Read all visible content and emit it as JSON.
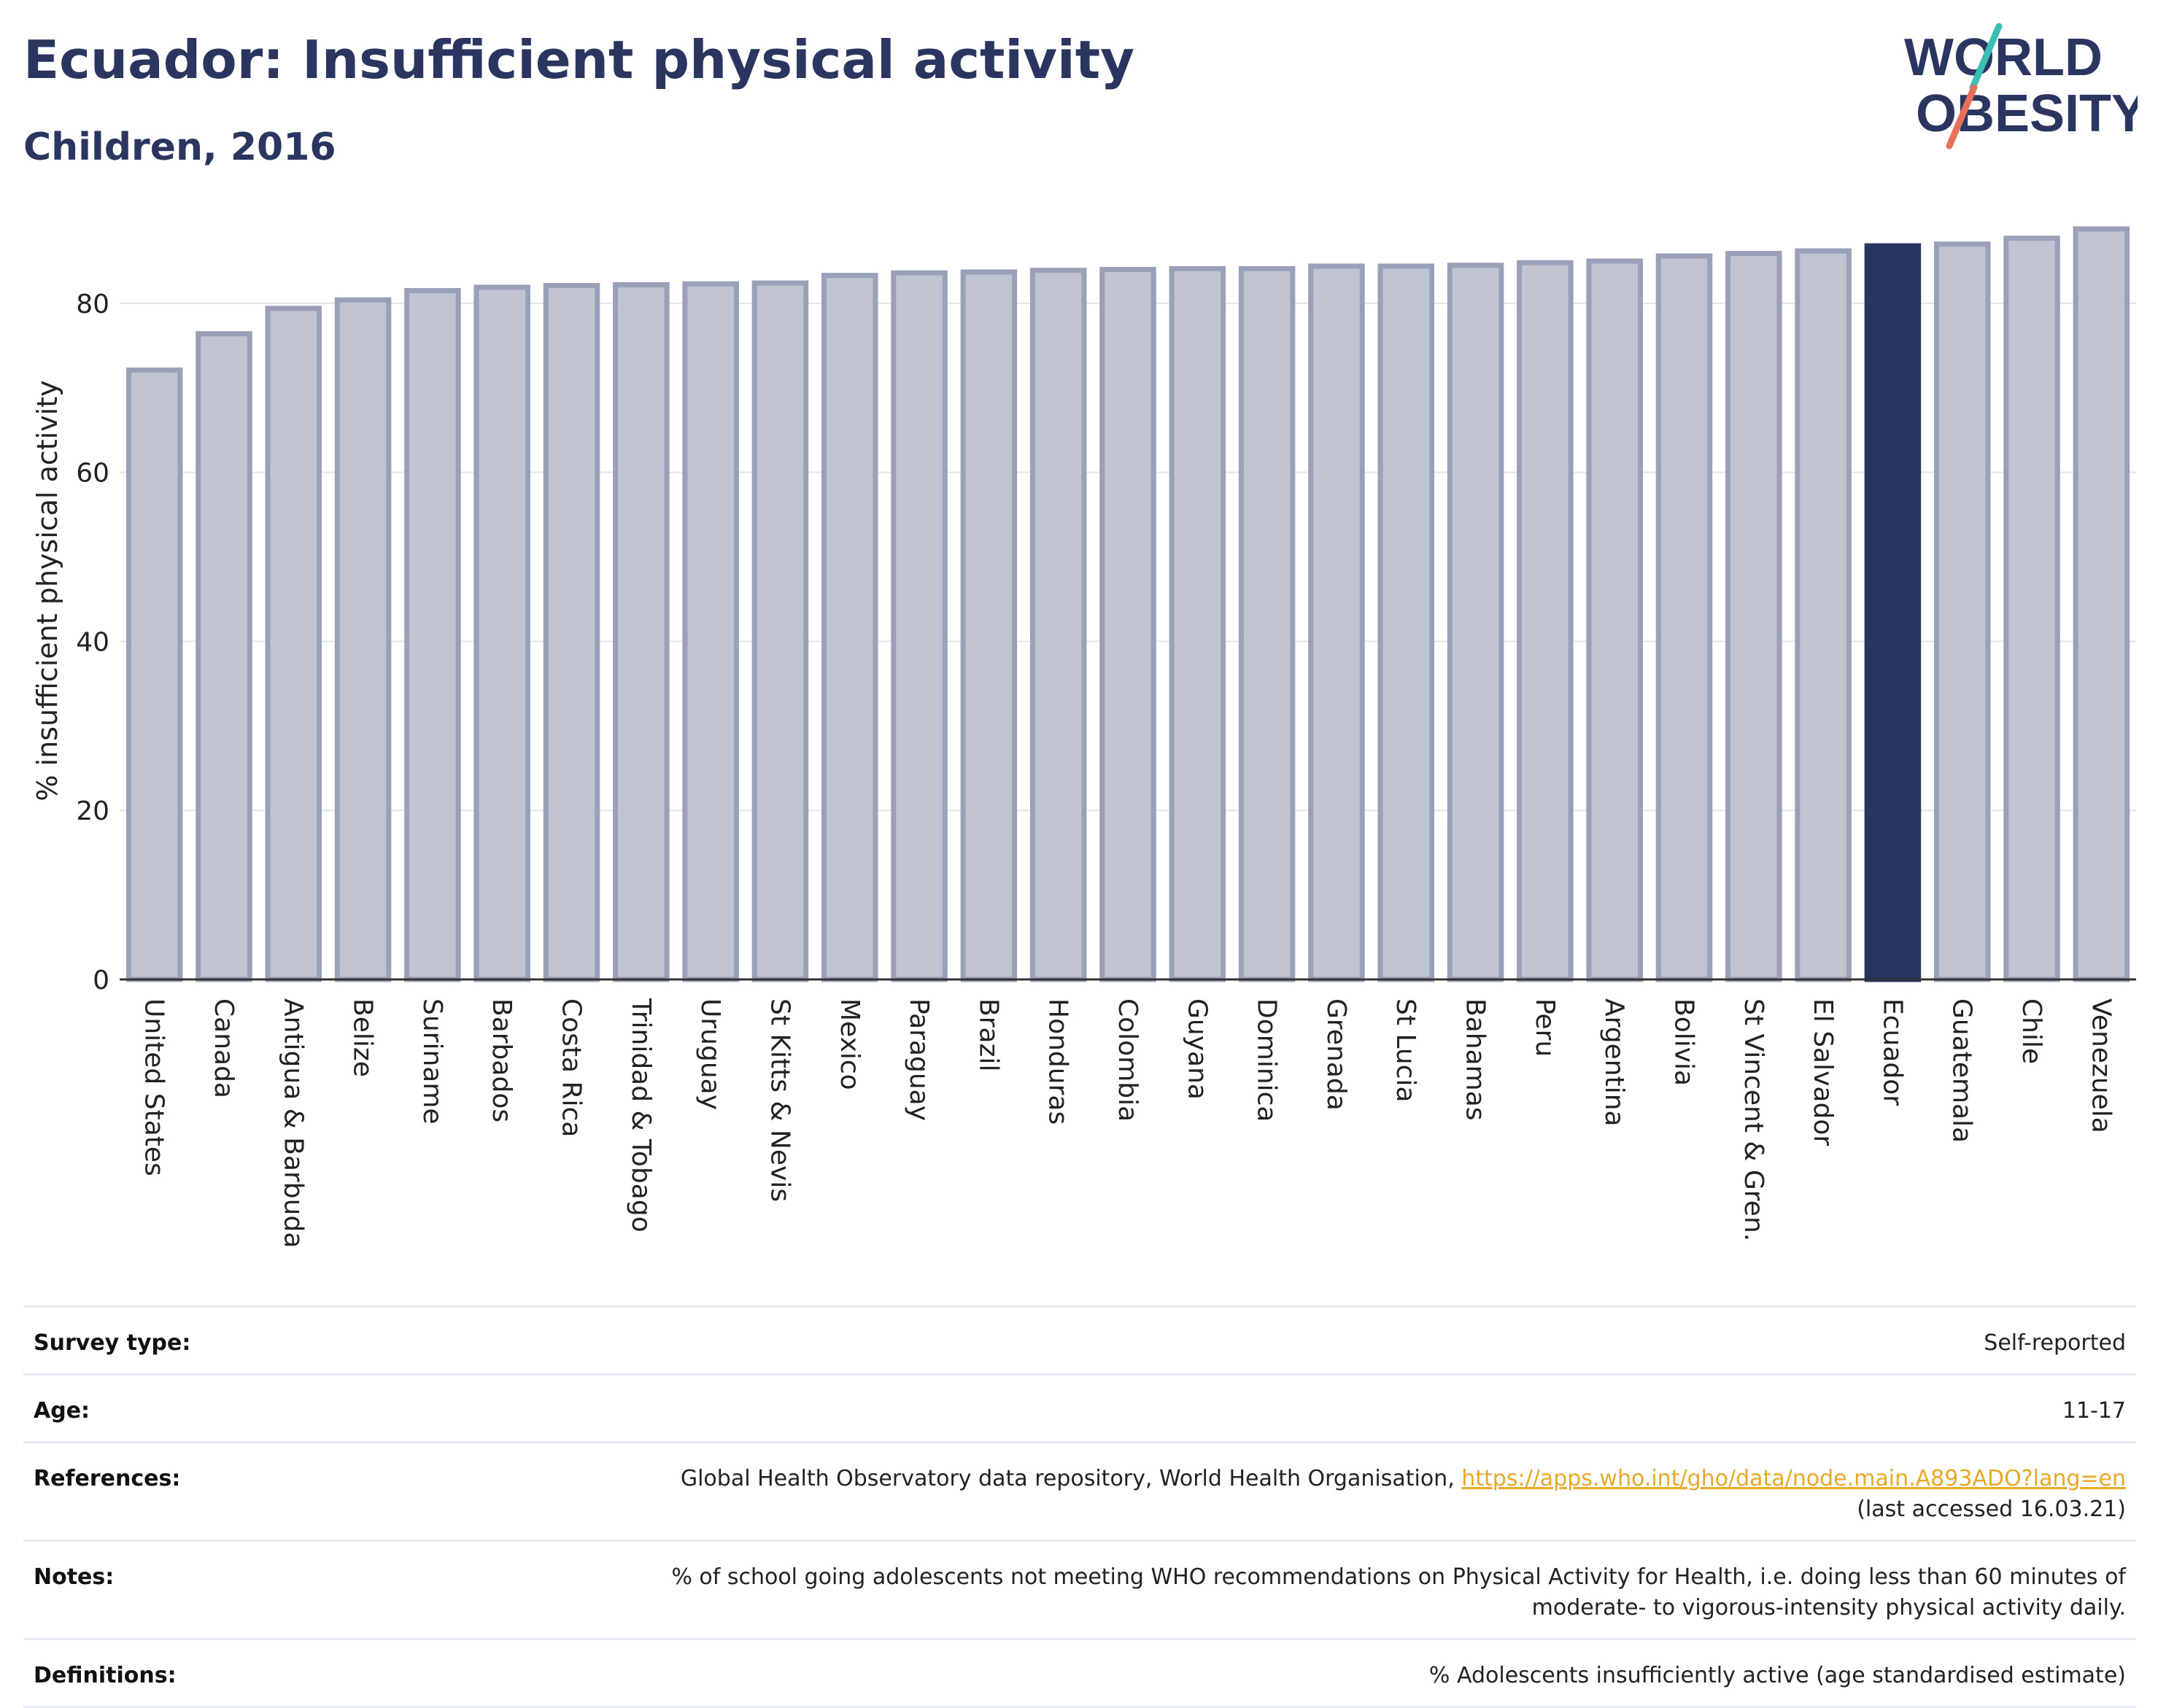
{
  "header": {
    "title": "Ecuador: Insufficient physical activity",
    "subtitle": "Children, 2016"
  },
  "logo": {
    "line1": "WORLD",
    "line2": "OBESITY"
  },
  "colors": {
    "highlight": "#2a3560",
    "bar": "#c0c3d0",
    "bar_border": "#9aa0b8",
    "accent_teal": "#3bbfb5",
    "accent_coral": "#e8705a"
  },
  "chart_data": {
    "type": "bar",
    "ylabel": "% insufficient physical activity",
    "ylim": [
      0,
      90
    ],
    "yticks": [
      0,
      20,
      40,
      60,
      80
    ],
    "grid": true,
    "highlight": "Ecuador",
    "categories": [
      "United States",
      "Canada",
      "Antigua & Barbuda",
      "Belize",
      "Suriname",
      "Barbados",
      "Costa Rica",
      "Trinidad & Tobago",
      "Uruguay",
      "St Kitts & Nevis",
      "Mexico",
      "Paraguay",
      "Brazil",
      "Honduras",
      "Colombia",
      "Guyana",
      "Dominica",
      "Grenada",
      "St Lucia",
      "Bahamas",
      "Peru",
      "Argentina",
      "Bolivia",
      "St Vincent & Gren.",
      "El Salvador",
      "Ecuador",
      "Guatemala",
      "Chile",
      "Venezuela"
    ],
    "values": [
      72.1,
      76.4,
      79.4,
      80.4,
      81.5,
      81.9,
      82.1,
      82.2,
      82.3,
      82.4,
      83.3,
      83.6,
      83.7,
      83.9,
      84.0,
      84.1,
      84.1,
      84.4,
      84.4,
      84.5,
      84.8,
      85.0,
      85.6,
      85.9,
      86.2,
      86.8,
      87.0,
      87.7,
      88.8
    ]
  },
  "info": {
    "survey_label": "Survey type:",
    "survey_value": "Self-reported",
    "age_label": "Age:",
    "age_value": "11-17",
    "references_label": "References:",
    "references_text": "Global Health Observatory data repository, World Health Organisation, ",
    "references_link": "https://apps.who.int/gho/data/node.main.A893ADO?lang=en",
    "references_accessed": "(last accessed 16.03.21)",
    "notes_label": "Notes:",
    "notes_line1": "% of school going adolescents not meeting WHO recommendations on Physical Activity for Health, i.e. doing less than 60 minutes of",
    "notes_line2": "moderate- to vigorous-intensity physical activity daily.",
    "definitions_label": "Definitions:",
    "definitions_value": "% Adolescents insufficiently active (age standardised estimate)"
  }
}
